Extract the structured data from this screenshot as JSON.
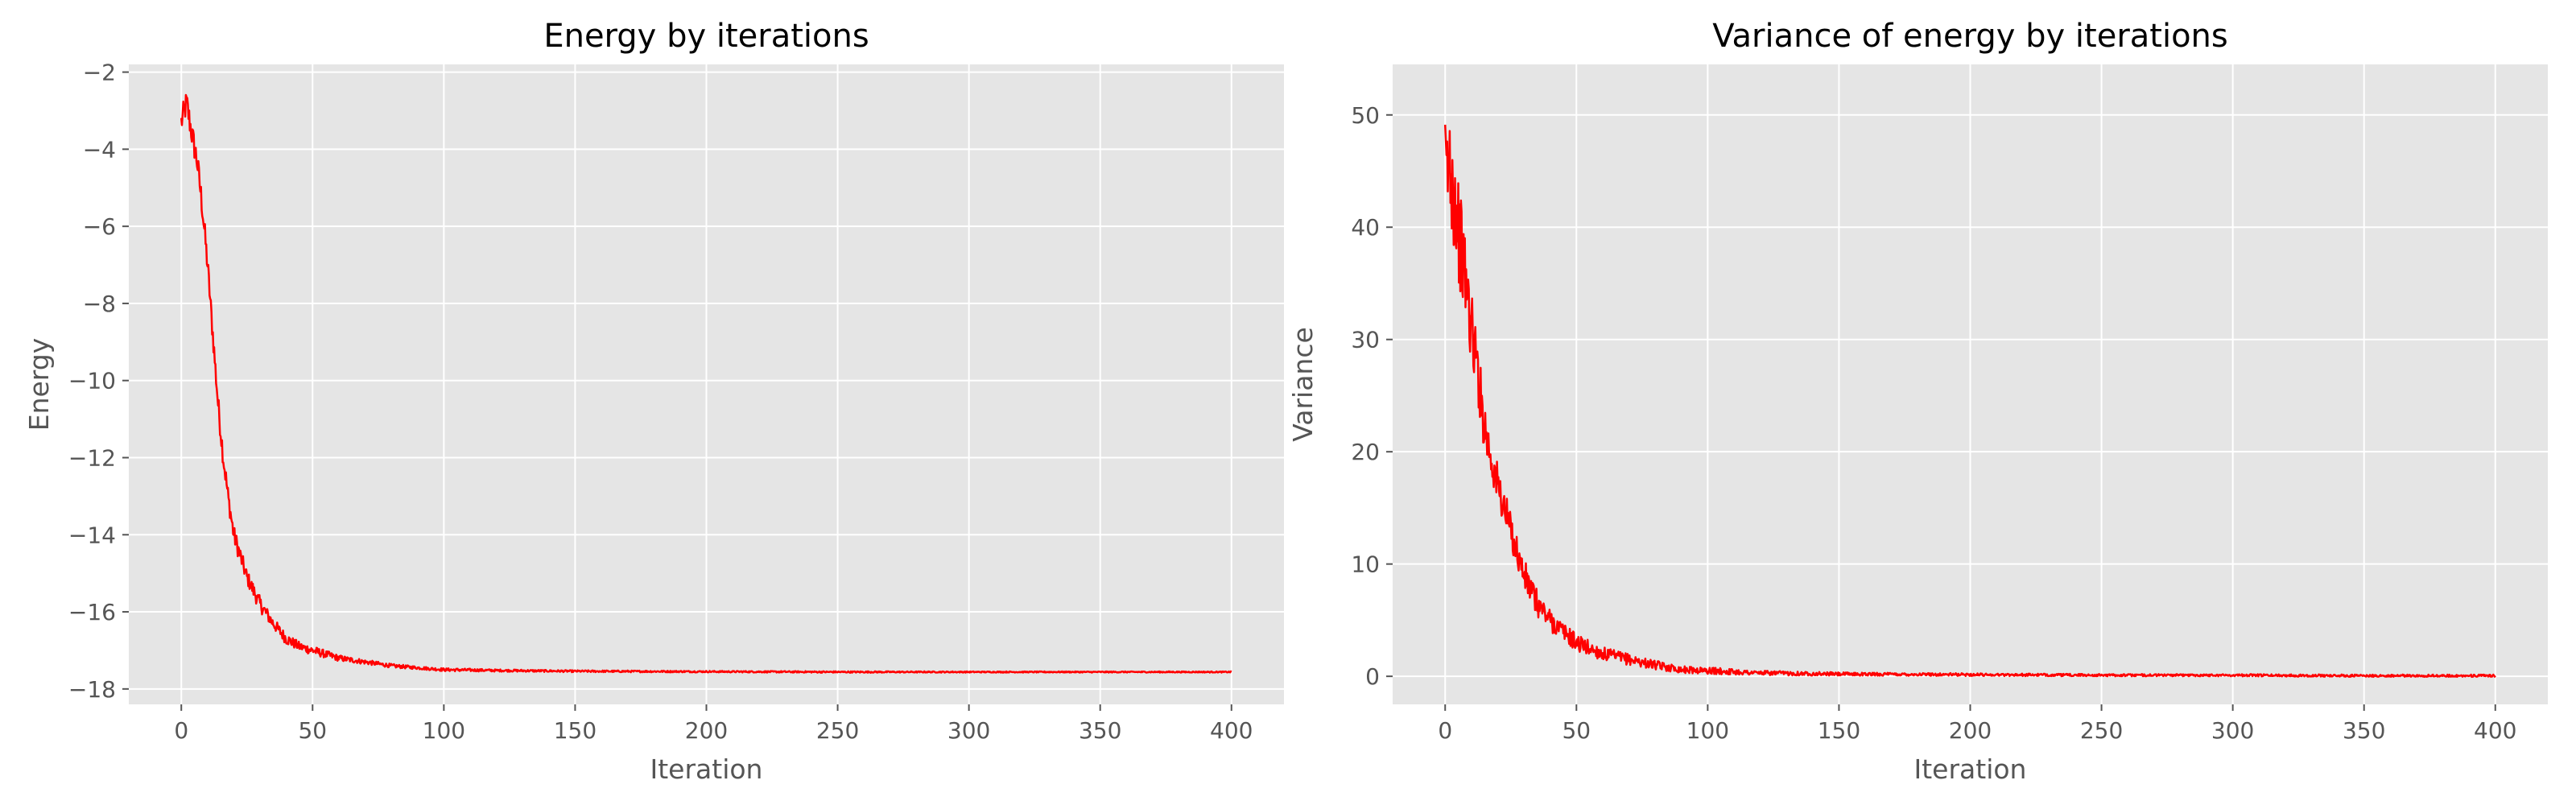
{
  "chart_data": [
    {
      "type": "line",
      "title": "Energy by iterations",
      "xlabel": "Iteration",
      "ylabel": "Energy",
      "xlim": [
        -20,
        420
      ],
      "ylim": [
        -18.4,
        -1.8
      ],
      "xticks": [
        0,
        50,
        100,
        150,
        200,
        250,
        300,
        350,
        400
      ],
      "yticks": [
        -18,
        -16,
        -14,
        -12,
        -10,
        -8,
        -6,
        -4,
        -2
      ],
      "grid": true,
      "style": "ggplot",
      "background": "#E5E5E5",
      "grid_color": "#FFFFFF",
      "series": [
        {
          "color": "#FF0000",
          "x": [
            0,
            2,
            4,
            6,
            8,
            10,
            12,
            14,
            16,
            18,
            20,
            25,
            30,
            35,
            40,
            45,
            50,
            60,
            70,
            80,
            90,
            100,
            120,
            150,
            200,
            250,
            300,
            350,
            400
          ],
          "y": [
            -3.3,
            -2.8,
            -3.6,
            -4.3,
            -5.5,
            -7.0,
            -8.8,
            -10.6,
            -12.0,
            -13.1,
            -14.0,
            -15.1,
            -15.8,
            -16.3,
            -16.7,
            -16.9,
            -17.0,
            -17.2,
            -17.3,
            -17.4,
            -17.45,
            -17.5,
            -17.52,
            -17.54,
            -17.55,
            -17.56,
            -17.56,
            -17.56,
            -17.56
          ],
          "noise": [
            0.35,
            0.35,
            0.35,
            0.35,
            0.35,
            0.3,
            0.3,
            0.3,
            0.3,
            0.25,
            0.25,
            0.2,
            0.2,
            0.15,
            0.15,
            0.12,
            0.12,
            0.08,
            0.06,
            0.05,
            0.04,
            0.04,
            0.03,
            0.025,
            0.02,
            0.02,
            0.015,
            0.015,
            0.015
          ]
        }
      ]
    },
    {
      "type": "line",
      "title": "Variance of energy by iterations",
      "xlabel": "Iteration",
      "ylabel": "Variance",
      "xlim": [
        -20,
        420
      ],
      "ylim": [
        -2.5,
        54.5
      ],
      "xticks": [
        0,
        50,
        100,
        150,
        200,
        250,
        300,
        350,
        400
      ],
      "yticks": [
        0,
        10,
        20,
        30,
        40,
        50
      ],
      "grid": true,
      "style": "ggplot",
      "background": "#E5E5E5",
      "grid_color": "#FFFFFF",
      "series": [
        {
          "color": "#FF0000",
          "x": [
            0,
            2,
            4,
            6,
            8,
            10,
            12,
            14,
            16,
            18,
            20,
            25,
            30,
            35,
            40,
            45,
            50,
            60,
            70,
            80,
            90,
            100,
            120,
            150,
            200,
            250,
            300,
            350,
            400
          ],
          "y": [
            44,
            46,
            42,
            38,
            35,
            31,
            28,
            24,
            21,
            19,
            17,
            13,
            9,
            6.5,
            5,
            4,
            3,
            2,
            1.5,
            1,
            0.6,
            0.5,
            0.3,
            0.2,
            0.15,
            0.1,
            0.1,
            0.05,
            0.05
          ],
          "noise": [
            6,
            6,
            5,
            4.5,
            4,
            3.5,
            3,
            2.5,
            2.5,
            2,
            2,
            1.5,
            1.5,
            1.2,
            1,
            0.8,
            0.8,
            0.6,
            0.5,
            0.4,
            0.3,
            0.3,
            0.2,
            0.15,
            0.12,
            0.1,
            0.1,
            0.1,
            0.1
          ]
        }
      ]
    }
  ]
}
